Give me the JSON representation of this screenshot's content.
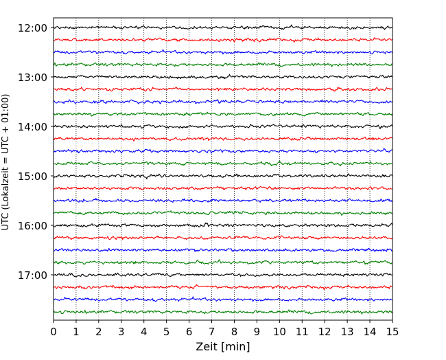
{
  "chart_data": {
    "type": "line",
    "xlabel": "Zeit  [min]",
    "ylabel": "UTC (Lokalzeit = UTC + 01:00)",
    "xlim": [
      0,
      15
    ],
    "x_ticks": [
      0,
      1,
      2,
      3,
      4,
      5,
      6,
      7,
      8,
      9,
      10,
      11,
      12,
      13,
      14,
      15
    ],
    "y_tick_labels": [
      "12:00",
      "13:00",
      "14:00",
      "15:00",
      "16:00",
      "17:00"
    ],
    "traces_per_hour": 4,
    "minutes_per_trace": 15,
    "trace_colors": [
      "#000000",
      "#ff0000",
      "#0000ff",
      "#008000"
    ],
    "grid": "vertical dotted lines at each minute",
    "series": [
      {
        "start": "12:00"
      },
      {
        "start": "12:15"
      },
      {
        "start": "12:30"
      },
      {
        "start": "12:45"
      },
      {
        "start": "13:00"
      },
      {
        "start": "13:15"
      },
      {
        "start": "13:30"
      },
      {
        "start": "13:45"
      },
      {
        "start": "14:00"
      },
      {
        "start": "14:15"
      },
      {
        "start": "14:30"
      },
      {
        "start": "14:45"
      },
      {
        "start": "15:00"
      },
      {
        "start": "15:15"
      },
      {
        "start": "15:30"
      },
      {
        "start": "15:45"
      },
      {
        "start": "16:00"
      },
      {
        "start": "16:15"
      },
      {
        "start": "16:30"
      },
      {
        "start": "16:45"
      },
      {
        "start": "17:00"
      },
      {
        "start": "17:15"
      },
      {
        "start": "17:30"
      },
      {
        "start": "17:45"
      }
    ]
  }
}
